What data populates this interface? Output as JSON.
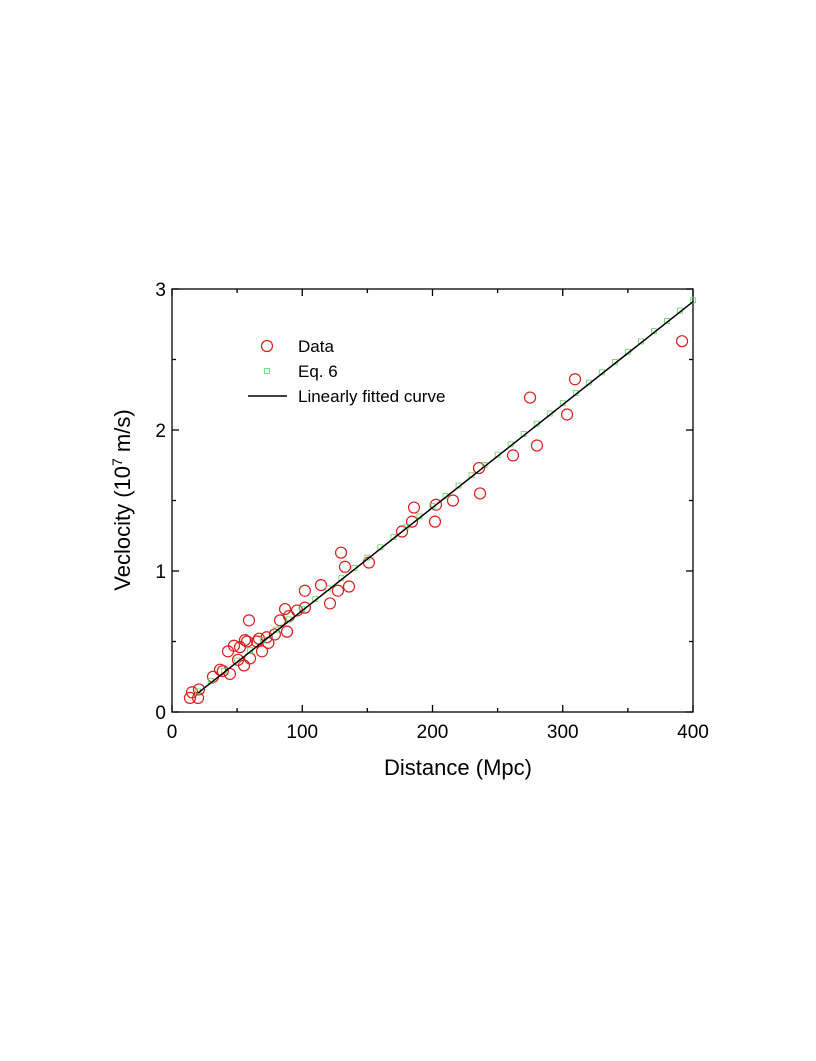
{
  "chart_data": {
    "type": "scatter",
    "xlabel": "Distance (Mpc)",
    "ylabel": [
      "Veclocity (10",
      "7",
      " m/s)"
    ],
    "xlim": [
      0,
      400
    ],
    "ylim": [
      0,
      3
    ],
    "xticks": [
      0,
      100,
      200,
      300,
      400
    ],
    "yticks": [
      0,
      1,
      2,
      3
    ],
    "xminor": [
      50,
      150,
      250,
      350
    ],
    "yminor": [
      0.5,
      1.5,
      2.5
    ],
    "legend": "upper left",
    "series": [
      {
        "name": "Data",
        "marker": "circle",
        "color": "#dd1c1c",
        "x": [
          13.8,
          15.4,
          20,
          20.7,
          31.5,
          36.9,
          39,
          44.5,
          43,
          47.6,
          50.7,
          52.2,
          55.3,
          56,
          57.6,
          59.1,
          59.9,
          65.3,
          66.8,
          69.1,
          72.7,
          74,
          79,
          83,
          86.8,
          88.3,
          89.8,
          96,
          102,
          102,
          114.4,
          121.3,
          127.4,
          129.8,
          132.8,
          135.9,
          151.2,
          176.6,
          184.3,
          185.8,
          201.9,
          202.7,
          215.7,
          235.7,
          236.5,
          261.8,
          274.9,
          280.2,
          303.3,
          309.4,
          391.6
        ],
        "values": [
          0.1,
          0.14,
          0.1,
          0.16,
          0.25,
          0.3,
          0.29,
          0.27,
          0.43,
          0.47,
          0.37,
          0.46,
          0.33,
          0.51,
          0.5,
          0.65,
          0.38,
          0.5,
          0.52,
          0.43,
          0.53,
          0.49,
          0.55,
          0.65,
          0.73,
          0.57,
          0.68,
          0.72,
          0.74,
          0.86,
          0.9,
          0.77,
          0.86,
          1.13,
          1.03,
          0.89,
          1.06,
          1.28,
          1.35,
          1.45,
          1.35,
          1.47,
          1.5,
          1.73,
          1.55,
          1.82,
          2.23,
          1.89,
          2.11,
          2.36,
          2.63
        ]
      },
      {
        "name": "Eq. 6",
        "marker": "square",
        "color": "#5ed35e",
        "x": [
          20,
          30,
          40,
          50,
          60,
          70,
          80,
          90,
          100,
          110,
          120,
          130,
          140,
          150,
          160,
          170,
          180,
          190,
          200,
          210,
          220,
          230,
          240,
          250,
          260,
          270,
          280,
          290,
          300,
          310,
          320,
          330,
          340,
          350,
          360,
          370,
          380,
          390,
          400
        ],
        "values": [
          0.146,
          0.219,
          0.292,
          0.365,
          0.438,
          0.511,
          0.584,
          0.657,
          0.73,
          0.803,
          0.876,
          0.949,
          1.022,
          1.095,
          1.168,
          1.241,
          1.314,
          1.387,
          1.46,
          1.533,
          1.606,
          1.679,
          1.752,
          1.825,
          1.898,
          1.971,
          2.044,
          2.117,
          2.19,
          2.263,
          2.336,
          2.409,
          2.482,
          2.555,
          2.628,
          2.701,
          2.774,
          2.847,
          2.92
        ]
      },
      {
        "name": "Linearly fitted curve",
        "marker": "line",
        "color": "#000000",
        "x": [
          20,
          400
        ],
        "values": [
          0.135,
          2.91
        ]
      }
    ]
  }
}
